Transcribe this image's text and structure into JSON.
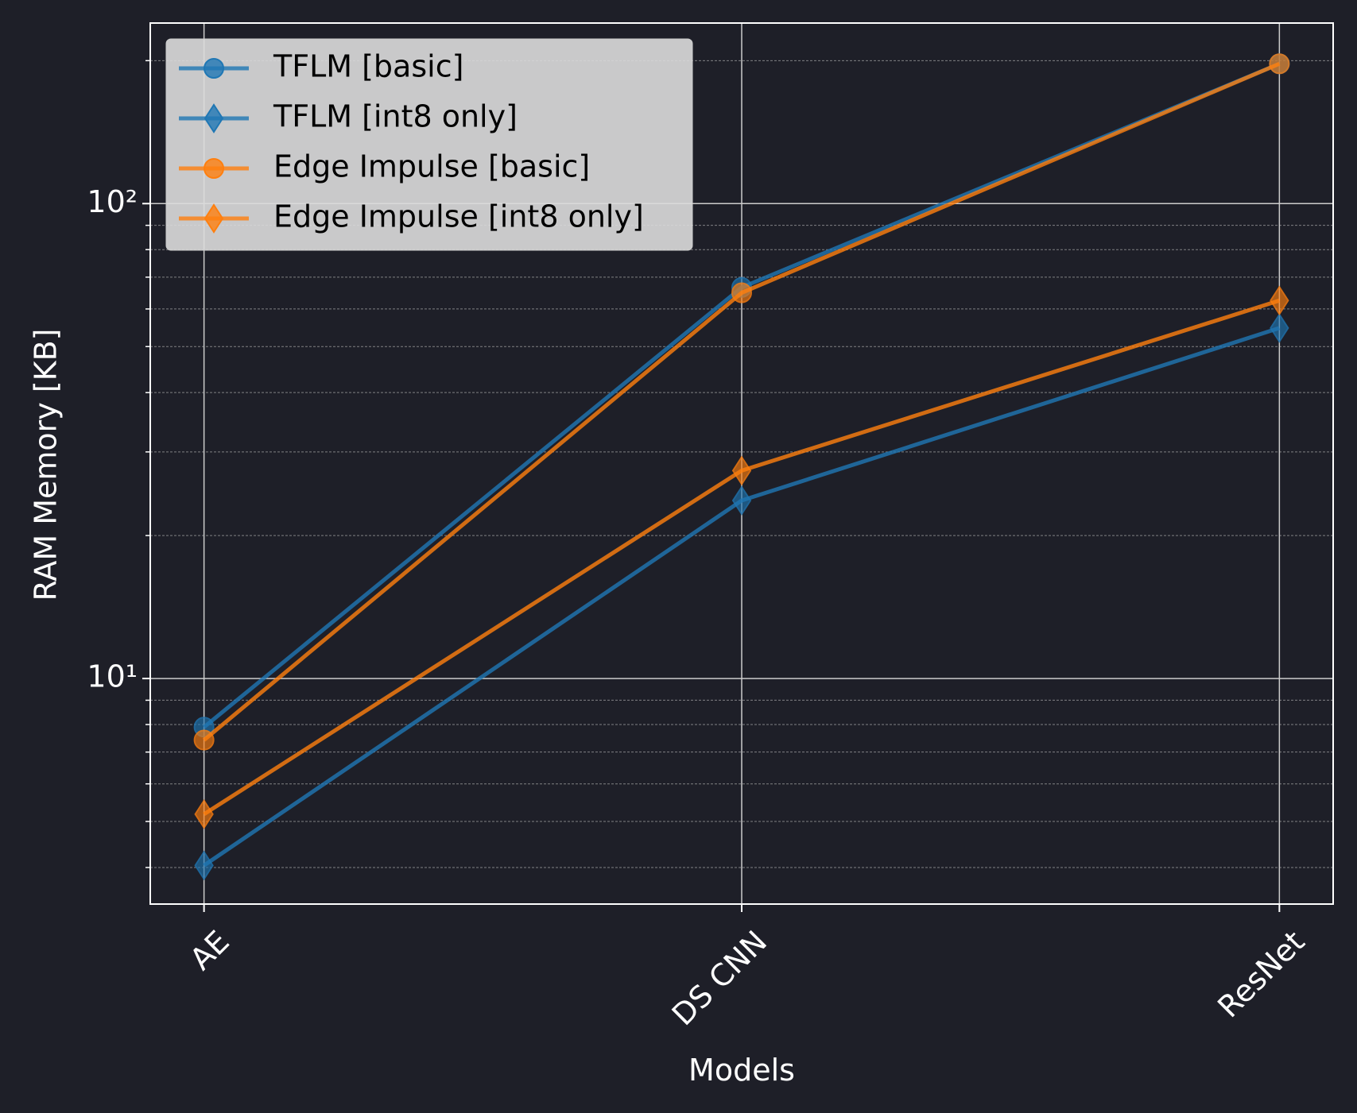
{
  "chart_data": {
    "type": "line",
    "x_label": "Models",
    "y_label": "RAM Memory [KB]",
    "categories": [
      "AE",
      "DS CNN",
      "ResNet"
    ],
    "xlim": [
      -0.1,
      2.1
    ],
    "ylim": [
      3.35,
      240
    ],
    "log_y": true,
    "grid": true,
    "legend_position": "upper left",
    "yticks": [
      {
        "value": 10,
        "label": "10¹"
      },
      {
        "value": 100,
        "label": "10²"
      }
    ],
    "yticks_minor": [
      4,
      5,
      6,
      7,
      8,
      9,
      20,
      30,
      40,
      50,
      60,
      70,
      80,
      90,
      200
    ],
    "series": [
      {
        "name": "TFLM [basic]",
        "color": "#1f77b4",
        "marker": "circle",
        "values": [
          7.9,
          66.6,
          197
        ]
      },
      {
        "name": "TFLM [int8 only]",
        "color": "#1f77b4",
        "marker": "diamond",
        "values": [
          4.04,
          23.7,
          54.7
        ]
      },
      {
        "name": "Edge Impulse [basic]",
        "color": "#ff7f0e",
        "marker": "circle",
        "values": [
          7.42,
          64.9,
          197
        ]
      },
      {
        "name": "Edge Impulse [int8 only]",
        "color": "#ff7f0e",
        "marker": "diamond",
        "values": [
          5.18,
          27.4,
          62.5
        ]
      }
    ]
  }
}
